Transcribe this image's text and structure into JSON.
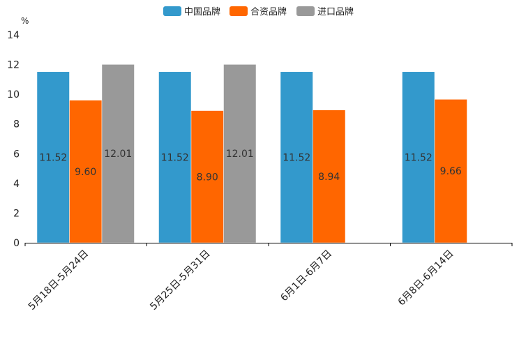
{
  "chart_data": {
    "type": "bar",
    "title": "",
    "xlabel": "",
    "ylabel": "%",
    "ylim": [
      0,
      14
    ],
    "yticks": [
      0,
      2,
      4,
      6,
      8,
      10,
      12,
      14
    ],
    "grid": false,
    "legend_position": "top-center",
    "categories": [
      "5月18日-5月24日",
      "5月25日-5月31日",
      "6月1日-6月7日",
      "6月8日-6月14日"
    ],
    "series": [
      {
        "name": "中国品牌",
        "color": "#3399cc",
        "values": [
          11.52,
          11.52,
          11.52,
          11.52
        ],
        "labels": [
          "11.52",
          "11.52",
          "11.52",
          "11.52"
        ]
      },
      {
        "name": "合资品牌",
        "color": "#ff6600",
        "values": [
          9.6,
          8.9,
          8.94,
          9.66
        ],
        "labels": [
          "9.60",
          "8.90",
          "8.94",
          "9.66"
        ]
      },
      {
        "name": "进口品牌",
        "color": "#999999",
        "values": [
          12.01,
          12.01,
          null,
          null
        ],
        "labels": [
          "12.01",
          "12.01",
          null,
          null
        ]
      }
    ]
  }
}
